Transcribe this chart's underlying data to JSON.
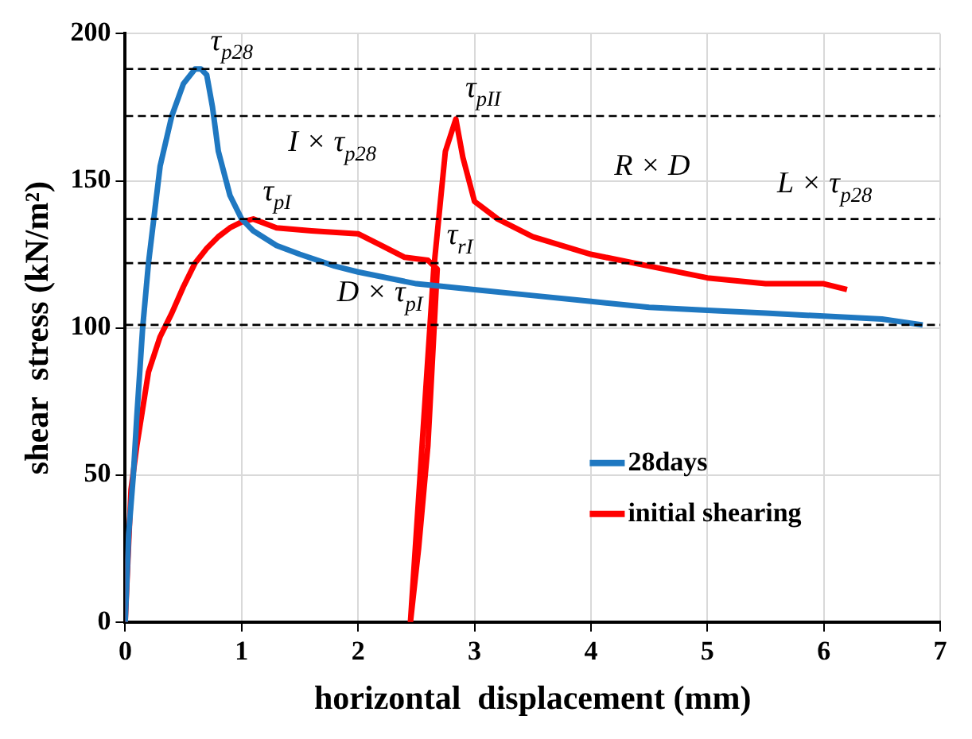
{
  "chart_data": {
    "type": "line",
    "xlabel": "horizontal  displacement (mm)",
    "ylabel": "shear  stress (kN/m²)",
    "xlim": [
      0,
      7
    ],
    "xticks": [
      0,
      1,
      2,
      3,
      4,
      5,
      6,
      7
    ],
    "ylim": [
      0,
      200
    ],
    "yticks": [
      0,
      50,
      100,
      150,
      200
    ],
    "grid": true,
    "legend": "bottom right",
    "marker": "none",
    "line_style": "solid",
    "series": [
      {
        "name": "28days",
        "color": "#1f78c1",
        "x": [
          0,
          0.03,
          0.07,
          0.1,
          0.15,
          0.2,
          0.3,
          0.4,
          0.5,
          0.6,
          0.65,
          0.7,
          0.75,
          0.8,
          0.9,
          1.0,
          1.1,
          1.3,
          1.5,
          1.8,
          2.0,
          2.5,
          3.0,
          3.5,
          4.0,
          4.5,
          5.0,
          5.5,
          6.0,
          6.5,
          6.85
        ],
        "values": [
          0,
          30,
          50,
          70,
          100,
          122,
          155,
          172,
          183,
          188,
          188,
          186,
          175,
          160,
          145,
          137,
          133,
          128,
          125,
          121,
          119,
          115,
          113,
          111,
          109,
          107,
          106,
          105,
          104,
          103,
          101
        ]
      },
      {
        "name": "initial shearing",
        "color": "#ff0000",
        "x": [
          0,
          0.05,
          0.1,
          0.2,
          0.3,
          0.4,
          0.5,
          0.6,
          0.7,
          0.8,
          0.9,
          1.0,
          1.1,
          1.3,
          1.6,
          2.0,
          2.2,
          2.4,
          2.6,
          2.68,
          2.6,
          2.52,
          2.45,
          2.55,
          2.65,
          2.75,
          2.84,
          2.9,
          3.0,
          3.2,
          3.5,
          4.0,
          4.5,
          5.0,
          5.5,
          6.0,
          6.2
        ],
        "values": [
          0,
          45,
          60,
          85,
          97,
          105,
          114,
          122,
          127,
          131,
          134,
          136,
          137,
          134,
          133,
          132,
          128,
          124,
          123,
          120,
          60,
          25,
          0,
          60,
          120,
          160,
          171,
          158,
          143,
          137,
          131,
          125,
          121,
          117,
          115,
          115,
          113
        ]
      }
    ],
    "ref_lines": [
      {
        "axis": "y",
        "value": 188,
        "color": "#000000",
        "line_style": "dashed"
      },
      {
        "axis": "y",
        "value": 172,
        "color": "#000000",
        "line_style": "dashed"
      },
      {
        "axis": "y",
        "value": 137,
        "color": "#000000",
        "line_style": "dashed"
      },
      {
        "axis": "y",
        "value": 122,
        "color": "#000000",
        "line_style": "dashed"
      },
      {
        "axis": "y",
        "value": 101,
        "color": "#000000",
        "line_style": "dashed"
      }
    ],
    "annotations": [
      {
        "text": "τ$_{p28}$",
        "x": 0.65,
        "y": 188
      },
      {
        "text": "τ$_{pII}$",
        "x": 2.84,
        "y": 172
      },
      {
        "text": "τ$_{pI}$",
        "x": 1.1,
        "y": 137
      },
      {
        "text": "τ$_{rI}$",
        "x": 2.68,
        "y": 122
      },
      "I × τ$_{p28}$",
      "R × D",
      "L × τ$_{p28}$",
      "D × τ$_{pI}$"
    ]
  }
}
